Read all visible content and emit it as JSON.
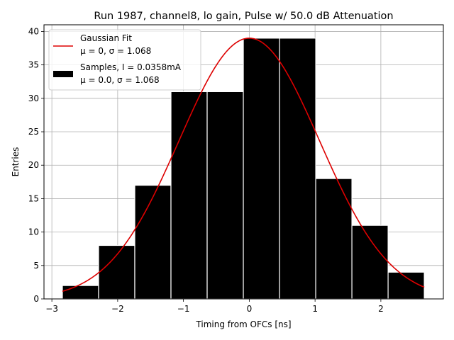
{
  "chart_data": {
    "type": "bar",
    "title": "Run 1987, channel8, lo gain, Pulse w/ 50.0 dB Attenuation",
    "xlabel": "Timing from OFCs [ns]",
    "ylabel": "Entries",
    "xlim": [
      -3.12,
      2.95
    ],
    "ylim": [
      0,
      41
    ],
    "xticks": [
      -3,
      -2,
      -1,
      0,
      1,
      2
    ],
    "xtick_labels": [
      "−3",
      "−2",
      "−1",
      "0",
      "1",
      "2"
    ],
    "yticks": [
      0,
      5,
      10,
      15,
      20,
      25,
      30,
      35,
      40
    ],
    "ytick_labels": [
      "0",
      "5",
      "10",
      "15",
      "20",
      "25",
      "30",
      "35",
      "40"
    ],
    "grid": true,
    "histogram": {
      "bin_edges": [
        -2.84,
        -2.29,
        -1.74,
        -1.19,
        -0.64,
        -0.09,
        0.46,
        1.01,
        1.56,
        2.11,
        2.66
      ],
      "counts": [
        2,
        8,
        17,
        31,
        31,
        39,
        39,
        18,
        11,
        4
      ],
      "color": "#000000"
    },
    "fit": {
      "type": "gaussian",
      "mu": 0,
      "sigma": 1.068,
      "amplitude": 39,
      "x_range": [
        -2.84,
        2.66
      ],
      "color": "#dd0000"
    },
    "legend": {
      "position": "top-left",
      "entries": [
        {
          "label": "Gaussian Fit",
          "sublabel": "μ = 0, σ = 1.068",
          "color": "#dd0000",
          "marker": "line"
        },
        {
          "label": "Samples, I = 0.0358mA",
          "sublabel": "μ = 0.0, σ = 1.068",
          "color": "#000000",
          "marker": "patch"
        }
      ]
    }
  }
}
